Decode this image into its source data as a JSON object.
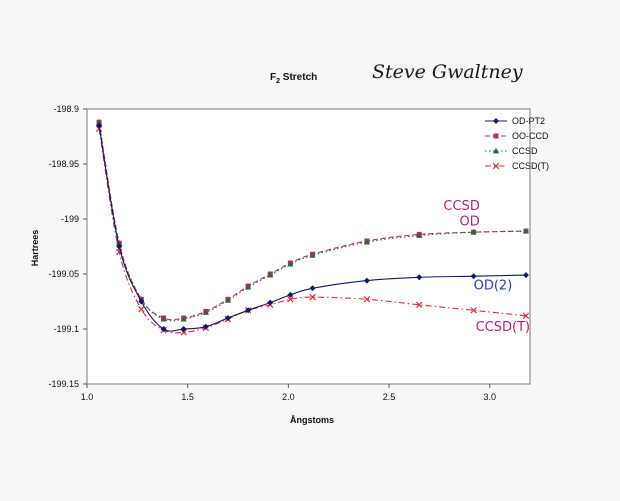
{
  "colors": {
    "page": "#f7f7f5",
    "plot_bg": "#ffffff",
    "od_pt2": "#0d1a6e",
    "oo_ccd": "#cc1f7a",
    "ccsd": "#2b6e2b",
    "ccsd_t": "#e0283c",
    "hand_magenta": "#c01a78",
    "hand_blue": "#2a3fc0"
  },
  "chart_data": {
    "type": "line",
    "title_base": "F",
    "title_sub": "2",
    "title_rest": " Stretch",
    "signature": "Steve Gwaltney",
    "xlabel": "Ångstoms",
    "ylabel": "Hartrees",
    "xlim": [
      1.0,
      3.2
    ],
    "ylim": [
      -199.15,
      -198.9
    ],
    "x_ticks": [
      1.0,
      1.5,
      2.0,
      2.5,
      3.0
    ],
    "x_tick_labels": [
      "1.0",
      "1.5",
      "2.0",
      "2.5",
      "3.0"
    ],
    "y_ticks": [
      -198.9,
      -198.95,
      -199.0,
      -199.05,
      -199.1,
      -199.15
    ],
    "y_tick_labels": [
      "-198.9",
      "-198.95",
      "-199",
      "-199.05",
      "-199.1",
      "-199.15"
    ],
    "legend_position": "top-right",
    "series": [
      {
        "name": "OD-PT2",
        "style": "solid",
        "marker": "diamond",
        "color": "#0d1a6e",
        "x": [
          1.06,
          1.16,
          1.27,
          1.38,
          1.48,
          1.59,
          1.7,
          1.8,
          1.91,
          2.01,
          2.12,
          2.39,
          2.65,
          2.92,
          3.18
        ],
        "y": [
          -198.915,
          -199.025,
          -199.075,
          -199.1,
          -199.1,
          -199.098,
          -199.09,
          -199.083,
          -199.076,
          -199.069,
          -199.063,
          -199.056,
          -199.053,
          -199.052,
          -199.051
        ]
      },
      {
        "name": "OO-CCD",
        "style": "dashed",
        "marker": "square",
        "color": "#cc1f7a",
        "x": [
          1.06,
          1.16,
          1.27,
          1.38,
          1.48,
          1.59,
          1.7,
          1.8,
          1.91,
          2.01,
          2.12,
          2.39,
          2.65,
          2.92,
          3.18
        ],
        "y": [
          -198.912,
          -199.022,
          -199.073,
          -199.09,
          -199.09,
          -199.084,
          -199.073,
          -199.061,
          -199.05,
          -199.04,
          -199.032,
          -199.02,
          -199.014,
          -199.012,
          -199.011
        ]
      },
      {
        "name": "CCSD",
        "style": "dotted",
        "marker": "triangle",
        "color": "#2b6e2b",
        "x": [
          1.06,
          1.16,
          1.27,
          1.38,
          1.48,
          1.59,
          1.7,
          1.8,
          1.91,
          2.01,
          2.12,
          2.39,
          2.65,
          2.92,
          3.18
        ],
        "y": [
          -198.912,
          -199.022,
          -199.073,
          -199.091,
          -199.091,
          -199.085,
          -199.074,
          -199.062,
          -199.051,
          -199.041,
          -199.033,
          -199.021,
          -199.015,
          -199.012,
          -199.011
        ]
      },
      {
        "name": "CCSD(T)",
        "style": "dashdot",
        "marker": "x",
        "color": "#e0283c",
        "x": [
          1.06,
          1.16,
          1.27,
          1.38,
          1.48,
          1.59,
          1.7,
          1.8,
          1.91,
          2.01,
          2.12,
          2.39,
          2.65,
          2.92,
          3.18
        ],
        "y": [
          -198.918,
          -199.03,
          -199.082,
          -199.101,
          -199.103,
          -199.099,
          -199.091,
          -199.083,
          -199.078,
          -199.073,
          -199.071,
          -199.073,
          -199.078,
          -199.083,
          -199.088
        ]
      }
    ],
    "annotations": [
      {
        "text": "CCSD",
        "x": 2.77,
        "y": -198.992,
        "color_key": "hand_magenta"
      },
      {
        "text": "OD",
        "x": 2.85,
        "y": -199.006,
        "color_key": "hand_magenta"
      },
      {
        "text": "OD(2)",
        "x": 2.92,
        "y": -199.064,
        "color_key": "hand_blue"
      },
      {
        "text": "CCSD(T)",
        "x": 2.93,
        "y": -199.102,
        "color_key": "hand_magenta"
      }
    ]
  }
}
